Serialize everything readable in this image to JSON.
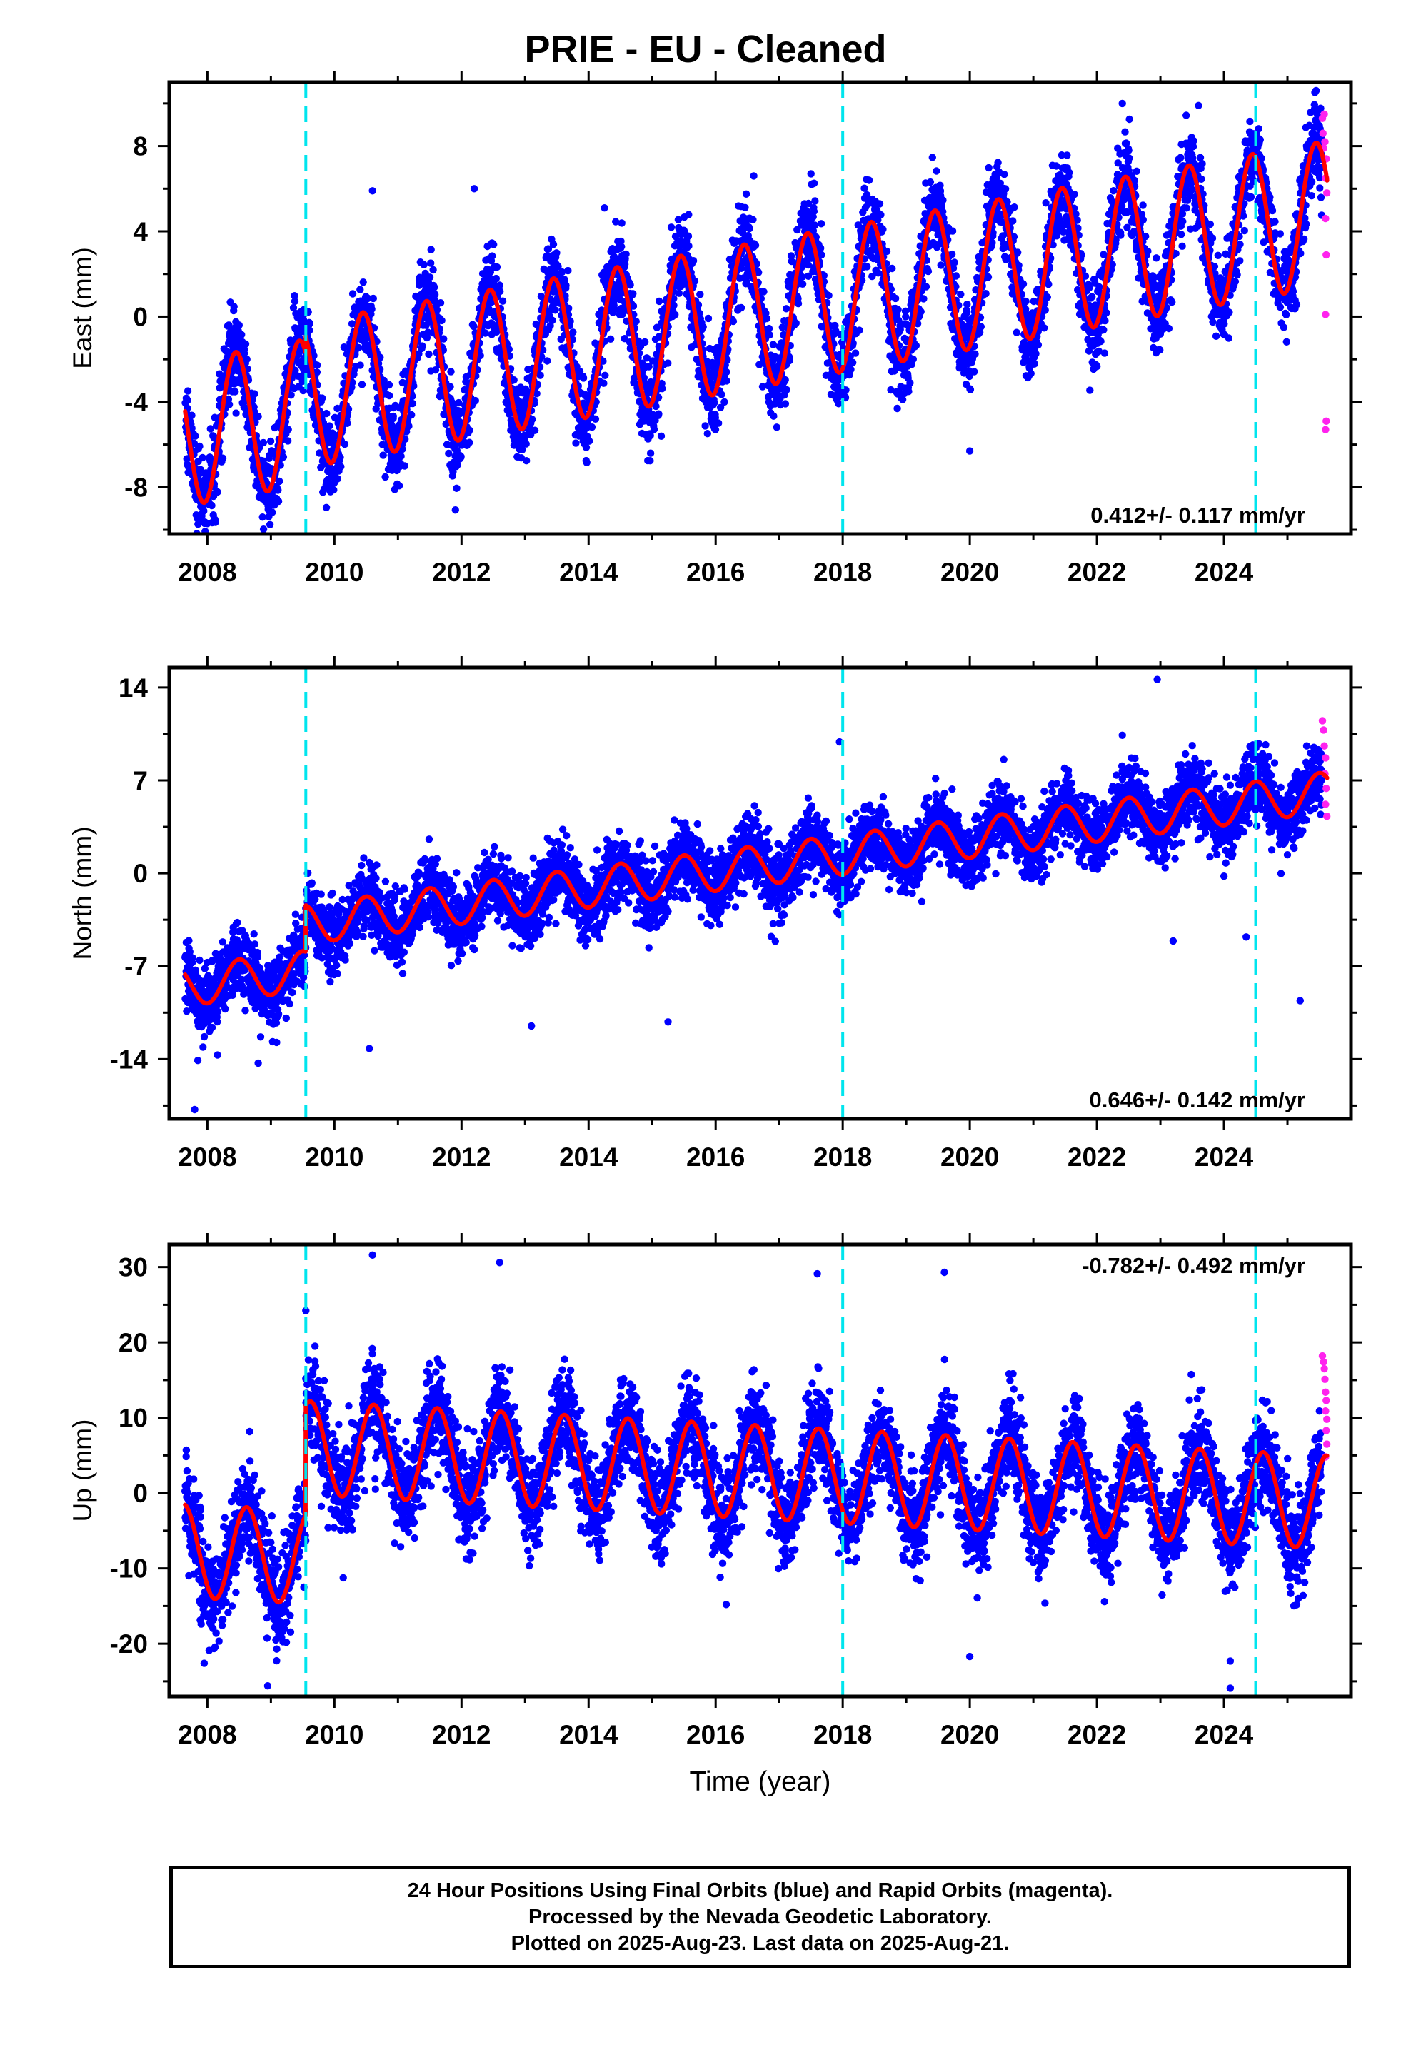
{
  "title": "PRIE  - EU - Cleaned",
  "colors": {
    "final_orbits": "#0000ff",
    "rapid_orbits": "#ff22ee",
    "model_fit": "#ff0000",
    "steps": "#00e5ee",
    "frame": "#000000"
  },
  "step_epochs": [
    2009.55,
    2018.0,
    2024.5
  ],
  "caption": [
    "24 Hour Positions Using Final Orbits (blue) and Rapid Orbits (magenta).",
    "Processed by the Nevada Geodetic Laboratory.",
    "Plotted on 2025-Aug-23. Last data on 2025-Aug-21."
  ],
  "chart_data": [
    {
      "type": "scatter",
      "component": "east",
      "ylabel": "East (mm)",
      "xlabel": "",
      "xlim": [
        2007.4,
        2026.0
      ],
      "ylim": [
        -10.2,
        11.0
      ],
      "xticks": [
        2008,
        2010,
        2012,
        2014,
        2016,
        2018,
        2020,
        2022,
        2024
      ],
      "yticks": [
        -8,
        -4,
        0,
        4,
        8
      ],
      "velocity_label": "0.412+/- 0.117 mm/yr",
      "velocity_label_position": "bottom-right",
      "model": {
        "start": 2007.65,
        "end": 2025.63,
        "intercept_2008": -5.3,
        "rate_mm_per_yr": 0.53,
        "annual_amplitude": 3.4,
        "annual_peak_fraction": 0.45,
        "offsets": [
          {
            "epoch": 2009.55,
            "offset": 0.8
          },
          {
            "epoch": 2018.0,
            "offset": 0.0
          },
          {
            "epoch": 2024.5,
            "offset": 0.0
          }
        ]
      },
      "scatter_sigma": 1.0,
      "rapid_points": [
        [
          2025.55,
          9.3
        ],
        [
          2025.56,
          8.6
        ],
        [
          2025.57,
          7.9
        ],
        [
          2025.58,
          9.5
        ],
        [
          2025.59,
          8.2
        ],
        [
          2025.6,
          6.5
        ],
        [
          2025.61,
          7.4
        ],
        [
          2025.62,
          5.8
        ],
        [
          2025.6,
          4.6
        ],
        [
          2025.61,
          2.9
        ],
        [
          2025.6,
          0.1
        ],
        [
          2025.61,
          -4.9
        ],
        [
          2025.6,
          -5.3
        ]
      ],
      "outliers": [
        [
          2025.45,
          10.6
        ],
        [
          2022.4,
          10.0
        ],
        [
          2023.6,
          9.9
        ],
        [
          2010.6,
          5.9
        ],
        [
          2014.25,
          5.1
        ],
        [
          2012.2,
          6.0
        ],
        [
          2016.6,
          6.6
        ],
        [
          2017.5,
          6.7
        ],
        [
          2020.0,
          -6.3
        ],
        [
          2010.05,
          -7.6
        ]
      ]
    },
    {
      "type": "scatter",
      "component": "north",
      "ylabel": "North (mm)",
      "xlabel": "",
      "xlim": [
        2007.4,
        2026.0
      ],
      "ylim": [
        -18.5,
        15.5
      ],
      "xticks": [
        2008,
        2010,
        2012,
        2014,
        2016,
        2018,
        2020,
        2022,
        2024
      ],
      "yticks": [
        -14,
        -7,
        0,
        7,
        14
      ],
      "velocity_label": "0.646+/- 0.142 mm/yr",
      "velocity_label_position": "bottom-right",
      "model": {
        "start": 2007.65,
        "end": 2025.63,
        "intercept_2008": -8.3,
        "rate_mm_per_yr": 0.62,
        "annual_amplitude": 1.5,
        "annual_peak_fraction": 0.5,
        "offsets": [
          {
            "epoch": 2009.55,
            "offset": 3.5
          },
          {
            "epoch": 2018.0,
            "offset": 0.0
          },
          {
            "epoch": 2024.5,
            "offset": 0.0
          }
        ]
      },
      "scatter_sigma": 1.3,
      "rapid_points": [
        [
          2025.55,
          11.5
        ],
        [
          2025.57,
          10.8
        ],
        [
          2025.58,
          9.6
        ],
        [
          2025.6,
          8.7
        ],
        [
          2025.59,
          7.5
        ],
        [
          2025.61,
          6.4
        ],
        [
          2025.6,
          5.2
        ],
        [
          2025.62,
          4.3
        ]
      ],
      "outliers": [
        [
          2022.95,
          14.6
        ],
        [
          2022.4,
          10.4
        ],
        [
          2017.95,
          9.9
        ],
        [
          2007.8,
          -17.8
        ],
        [
          2008.8,
          -14.3
        ],
        [
          2007.85,
          -14.1
        ],
        [
          2010.55,
          -13.2
        ],
        [
          2025.2,
          -9.6
        ],
        [
          2023.2,
          -5.1
        ],
        [
          2024.35,
          -4.8
        ],
        [
          2013.1,
          -11.5
        ],
        [
          2015.25,
          -11.2
        ]
      ]
    },
    {
      "type": "scatter",
      "component": "up",
      "ylabel": "Up (mm)",
      "xlabel": "Time (year)",
      "xlim": [
        2007.4,
        2026.0
      ],
      "ylim": [
        -27.0,
        33.0
      ],
      "xticks": [
        2008,
        2010,
        2012,
        2014,
        2016,
        2018,
        2020,
        2022,
        2024
      ],
      "yticks": [
        -20,
        -10,
        0,
        10,
        20,
        30
      ],
      "velocity_label": "-0.782+/- 0.492 mm/yr",
      "velocity_label_position": "top-right",
      "model": {
        "start": 2007.65,
        "end": 2025.63,
        "intercept_2008": -7.8,
        "rate_mm_per_yr": -0.45,
        "annual_amplitude": 6.2,
        "annual_peak_fraction": 0.62,
        "offsets": [
          {
            "epoch": 2009.55,
            "offset": 14.5
          },
          {
            "epoch": 2018.0,
            "offset": 0.0
          },
          {
            "epoch": 2024.5,
            "offset": 0.0
          }
        ]
      },
      "scatter_sigma": 3.2,
      "rapid_points": [
        [
          2025.55,
          18.2
        ],
        [
          2025.57,
          17.4
        ],
        [
          2025.58,
          16.5
        ],
        [
          2025.59,
          15.1
        ],
        [
          2025.6,
          13.4
        ],
        [
          2025.61,
          12.3
        ],
        [
          2025.6,
          10.9
        ],
        [
          2025.62,
          9.8
        ],
        [
          2025.61,
          8.3
        ],
        [
          2025.62,
          6.5
        ],
        [
          2025.6,
          4.8
        ]
      ],
      "outliers": [
        [
          2010.6,
          31.6
        ],
        [
          2012.6,
          30.6
        ],
        [
          2017.6,
          29.1
        ],
        [
          2019.6,
          29.3
        ],
        [
          2009.55,
          24.2
        ],
        [
          2008.95,
          -25.6
        ],
        [
          2024.1,
          -25.9
        ],
        [
          2024.1,
          -22.3
        ],
        [
          2020.0,
          -21.7
        ],
        [
          2007.95,
          -22.6
        ]
      ]
    }
  ]
}
